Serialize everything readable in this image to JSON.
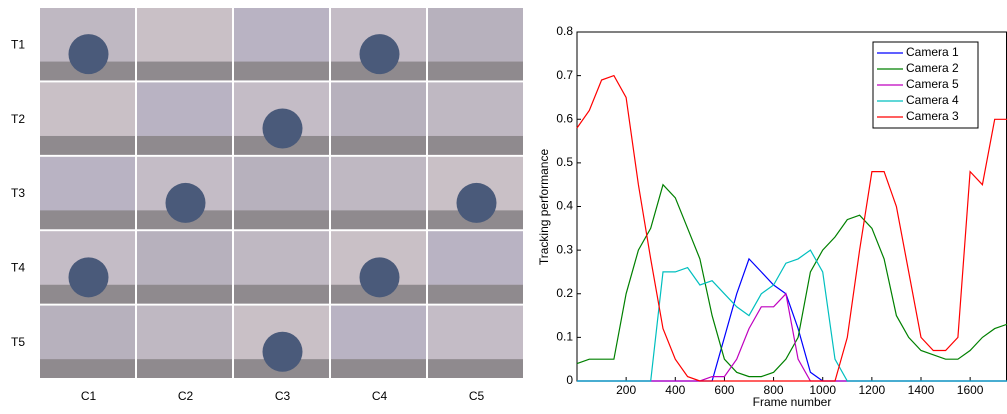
{
  "photo_grid": {
    "rows": [
      "T1",
      "T2",
      "T3",
      "T4",
      "T5"
    ],
    "columns": [
      "C1",
      "C2",
      "C3",
      "C4",
      "C5"
    ]
  },
  "chart_data": {
    "type": "line",
    "x_label": "Frame number",
    "y_label": "Tracking performance",
    "x": [
      0,
      50,
      100,
      150,
      200,
      250,
      300,
      350,
      400,
      450,
      500,
      550,
      600,
      650,
      700,
      750,
      800,
      850,
      900,
      950,
      1000,
      1050,
      1100,
      1150,
      1200,
      1250,
      1300,
      1350,
      1400,
      1450,
      1500,
      1550,
      1600,
      1650,
      1700,
      1750
    ],
    "xlim": [
      0,
      1750
    ],
    "xticks": [
      200,
      400,
      600,
      800,
      1000,
      1200,
      1400,
      1600
    ],
    "ylim": [
      0,
      0.8
    ],
    "yticks": [
      0,
      0.1,
      0.2,
      0.3,
      0.4,
      0.5,
      0.6,
      0.7,
      0.8
    ],
    "legend": "top-right",
    "series": [
      {
        "name": "Camera 1",
        "color": "#0000ff",
        "values": [
          0,
          0,
          0,
          0,
          0,
          0,
          0,
          0,
          0,
          0,
          0,
          0,
          0.1,
          0.2,
          0.28,
          0.25,
          0.22,
          0.2,
          0.12,
          0.02,
          0,
          0,
          0,
          0,
          0,
          0,
          0,
          0,
          0,
          0,
          0,
          0,
          0,
          0,
          0,
          0
        ]
      },
      {
        "name": "Camera 2",
        "color": "#008000",
        "values": [
          0.04,
          0.05,
          0.05,
          0.05,
          0.2,
          0.3,
          0.35,
          0.45,
          0.42,
          0.35,
          0.28,
          0.15,
          0.05,
          0.02,
          0.01,
          0.01,
          0.02,
          0.05,
          0.1,
          0.25,
          0.3,
          0.33,
          0.37,
          0.38,
          0.35,
          0.28,
          0.15,
          0.1,
          0.07,
          0.06,
          0.05,
          0.05,
          0.07,
          0.1,
          0.12,
          0.13
        ]
      },
      {
        "name": "Camera 5",
        "color": "#bf00bf",
        "values": [
          0,
          0,
          0,
          0,
          0,
          0,
          0,
          0,
          0,
          0,
          0,
          0.01,
          0.01,
          0.05,
          0.12,
          0.17,
          0.17,
          0.2,
          0.05,
          0,
          0,
          0,
          0,
          0,
          0,
          0,
          0,
          0,
          0,
          0,
          0,
          0,
          0,
          0,
          0,
          0
        ]
      },
      {
        "name": "Camera 4",
        "color": "#00bfbf",
        "values": [
          0,
          0,
          0,
          0,
          0,
          0,
          0,
          0.25,
          0.25,
          0.26,
          0.22,
          0.23,
          0.2,
          0.17,
          0.15,
          0.2,
          0.22,
          0.27,
          0.28,
          0.3,
          0.25,
          0.05,
          0,
          0,
          0,
          0,
          0,
          0,
          0,
          0,
          0,
          0,
          0,
          0,
          0,
          0
        ]
      },
      {
        "name": "Camera 3",
        "color": "#ff0000",
        "values": [
          0.58,
          0.62,
          0.69,
          0.7,
          0.65,
          0.45,
          0.28,
          0.12,
          0.05,
          0.01,
          0,
          0,
          0,
          0,
          0,
          0,
          0,
          0,
          0,
          0,
          0,
          0,
          0.1,
          0.3,
          0.48,
          0.48,
          0.4,
          0.25,
          0.1,
          0.07,
          0.07,
          0.1,
          0.48,
          0.45,
          0.6,
          0.6
        ]
      }
    ]
  }
}
